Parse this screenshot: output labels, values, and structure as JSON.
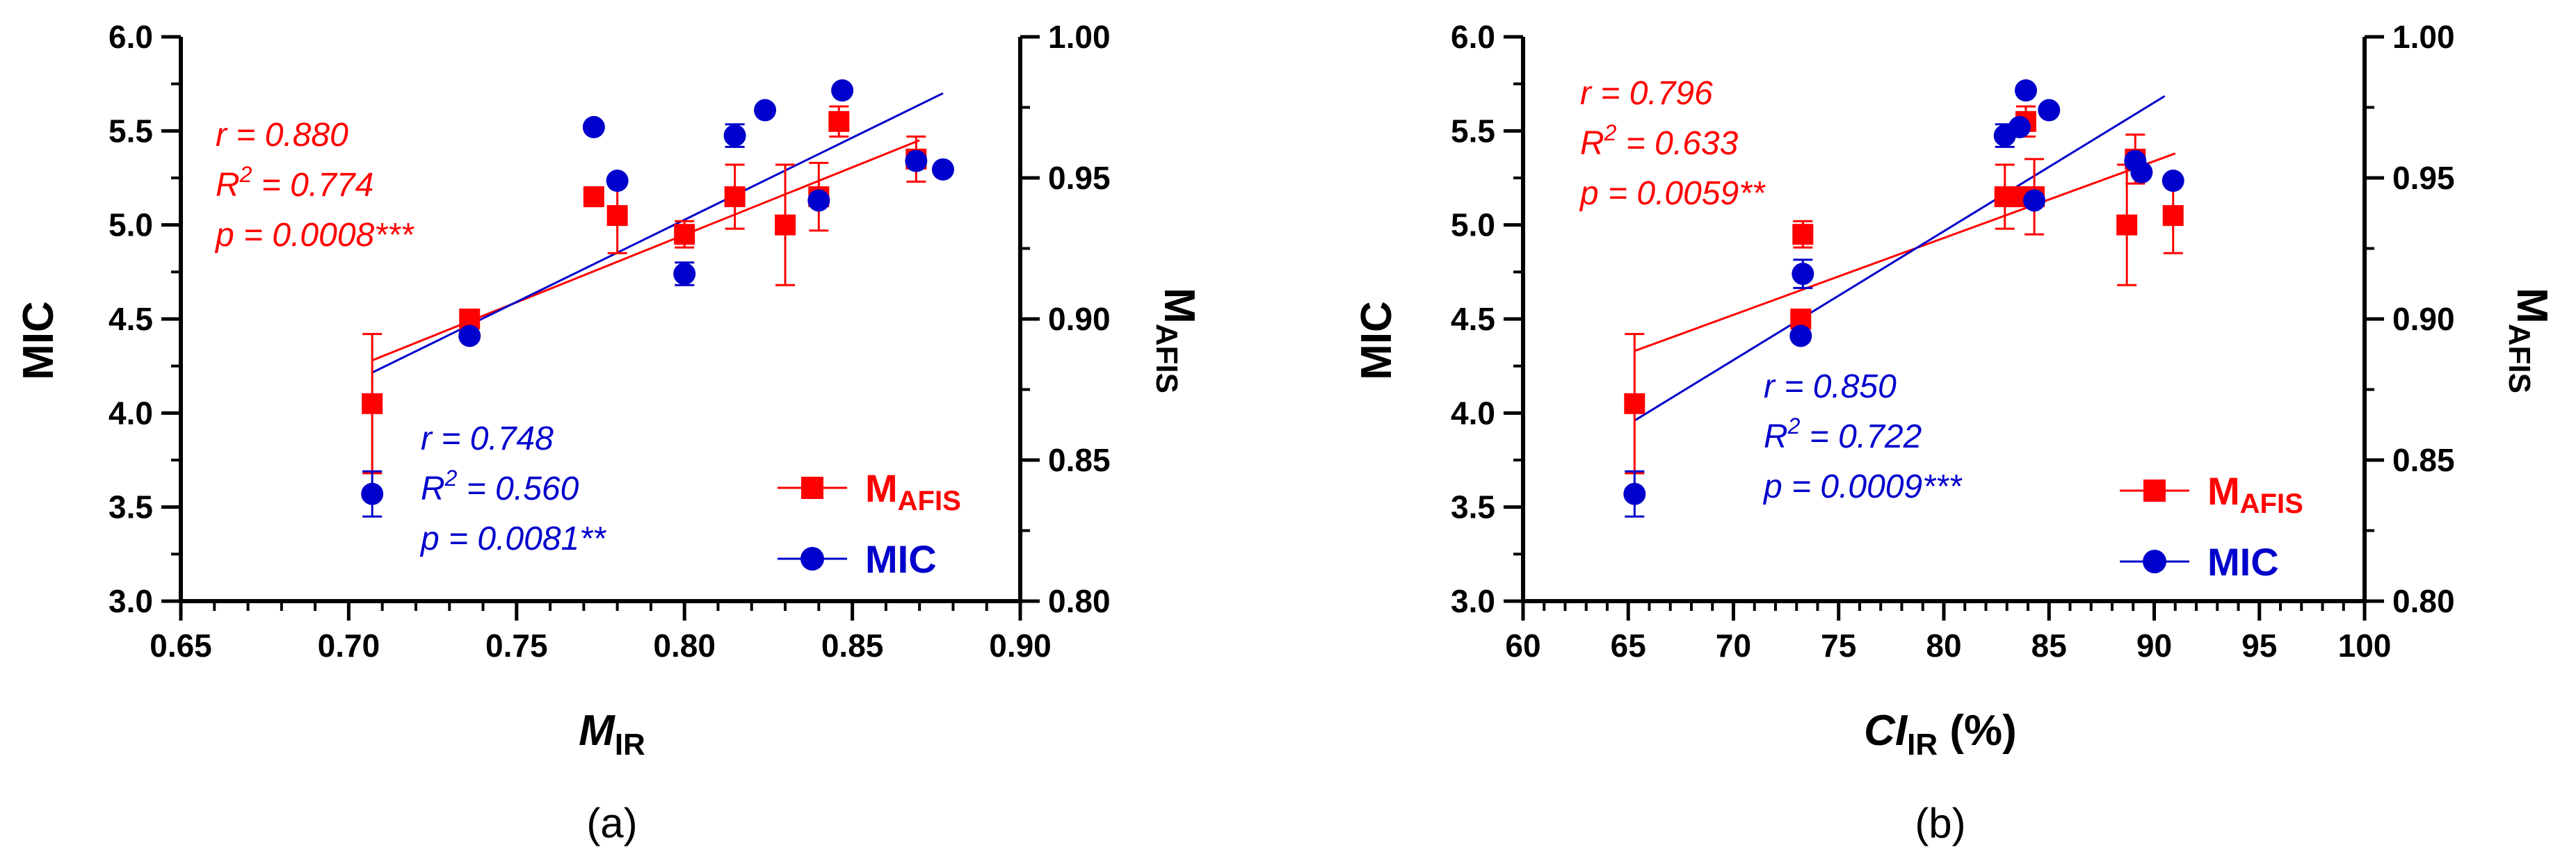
{
  "chart_data": [
    {
      "type": "scatter",
      "panel_label": "(a)",
      "xlabel": {
        "main": "M",
        "sub": "IR",
        "suffix": ""
      },
      "ylabel_left": "MIC",
      "ylabel_right": {
        "main": "M",
        "sub": "AFIS"
      },
      "xlim": [
        0.65,
        0.9
      ],
      "x_ticks": [
        "0.65",
        "0.70",
        "0.75",
        "0.80",
        "0.85",
        "0.90"
      ],
      "x_major_step": 0.05,
      "x_minor_step": 0.01,
      "ylim_left": [
        3.0,
        6.0
      ],
      "y_left_ticks": [
        "3.0",
        "3.5",
        "4.0",
        "4.5",
        "5.0",
        "5.5",
        "6.0"
      ],
      "ylim_right": [
        0.8,
        1.0
      ],
      "y_right_ticks": [
        "0.80",
        "0.85",
        "0.90",
        "0.95",
        "1.00"
      ],
      "legend": [
        {
          "main": "M",
          "sub": "AFIS",
          "color": "#ff0000",
          "marker": "square"
        },
        {
          "main": "MIC",
          "sub": "",
          "color": "#0000cc",
          "marker": "circle"
        }
      ],
      "series": [
        {
          "name": "MAFIS",
          "color": "#ff0000",
          "marker": "square",
          "axis": "left",
          "points": [
            {
              "x": 0.707,
              "y": 4.05,
              "err": 0.37
            },
            {
              "x": 0.736,
              "y": 4.5,
              "err": 0.05
            },
            {
              "x": 0.773,
              "y": 5.15,
              "err": 0.05
            },
            {
              "x": 0.78,
              "y": 5.05,
              "err": 0.2
            },
            {
              "x": 0.8,
              "y": 4.95,
              "err": 0.07
            },
            {
              "x": 0.815,
              "y": 5.15,
              "err": 0.17
            },
            {
              "x": 0.83,
              "y": 5.0,
              "err": 0.32
            },
            {
              "x": 0.84,
              "y": 5.15,
              "err": 0.18
            },
            {
              "x": 0.846,
              "y": 5.55,
              "err": 0.08
            },
            {
              "x": 0.869,
              "y": 5.35,
              "err": 0.12
            }
          ],
          "fit": {
            "x": [
              0.707,
              0.87
            ],
            "y": [
              4.28,
              5.45
            ]
          },
          "stats": {
            "r": "r = 0.880",
            "r2_pre": "R",
            "r2_sup": "2",
            "r2_post": " = 0.774",
            "p": "p = 0.0008***"
          }
        },
        {
          "name": "MIC",
          "color": "#0000cc",
          "marker": "circle",
          "axis": "right",
          "points": [
            {
              "x": 0.707,
              "y": 0.838,
              "err": 0.008
            },
            {
              "x": 0.736,
              "y": 0.894,
              "err": 0.0
            },
            {
              "x": 0.773,
              "y": 0.968,
              "err": 0.0
            },
            {
              "x": 0.78,
              "y": 0.949,
              "err": 0.0
            },
            {
              "x": 0.8,
              "y": 0.916,
              "err": 0.004
            },
            {
              "x": 0.815,
              "y": 0.965,
              "err": 0.004
            },
            {
              "x": 0.824,
              "y": 0.974,
              "err": 0.0
            },
            {
              "x": 0.84,
              "y": 0.942,
              "err": 0.0
            },
            {
              "x": 0.847,
              "y": 0.981,
              "err": 0.0
            },
            {
              "x": 0.869,
              "y": 0.956,
              "err": 0.0
            },
            {
              "x": 0.877,
              "y": 0.953,
              "err": 0.0
            }
          ],
          "fit": {
            "x": [
              0.707,
              0.877
            ],
            "y": [
              0.881,
              0.98
            ]
          },
          "stats": {
            "r": "r = 0.748",
            "r2_pre": "R",
            "r2_sup": "2",
            "r2_post": " = 0.560",
            "p": "p = 0.0081**"
          }
        }
      ]
    },
    {
      "type": "scatter",
      "panel_label": "(b)",
      "xlabel": {
        "main": "CI",
        "sub": "IR",
        "suffix": " (%)"
      },
      "ylabel_left": "MIC",
      "ylabel_right": {
        "main": "M",
        "sub": "AFIS"
      },
      "xlim": [
        60,
        100
      ],
      "x_ticks": [
        "60",
        "65",
        "70",
        "75",
        "80",
        "85",
        "90",
        "95",
        "100"
      ],
      "x_major_step": 5,
      "x_minor_step": 1,
      "ylim_left": [
        3.0,
        6.0
      ],
      "y_left_ticks": [
        "3.0",
        "3.5",
        "4.0",
        "4.5",
        "5.0",
        "5.5",
        "6.0"
      ],
      "ylim_right": [
        0.8,
        1.0
      ],
      "y_right_ticks": [
        "0.80",
        "0.85",
        "0.90",
        "0.95",
        "1.00"
      ],
      "legend": [
        {
          "main": "M",
          "sub": "AFIS",
          "color": "#ff0000",
          "marker": "square"
        },
        {
          "main": "MIC",
          "sub": "",
          "color": "#0000cc",
          "marker": "circle"
        }
      ],
      "series": [
        {
          "name": "MAFIS",
          "color": "#ff0000",
          "marker": "square",
          "axis": "left",
          "points": [
            {
              "x": 65.3,
              "y": 4.05,
              "err": 0.37
            },
            {
              "x": 73.2,
              "y": 4.5,
              "err": 0.05
            },
            {
              "x": 73.3,
              "y": 4.95,
              "err": 0.07
            },
            {
              "x": 82.9,
              "y": 5.15,
              "err": 0.17
            },
            {
              "x": 83.6,
              "y": 5.15,
              "err": 0.05
            },
            {
              "x": 83.9,
              "y": 5.55,
              "err": 0.08
            },
            {
              "x": 84.3,
              "y": 5.15,
              "err": 0.2
            },
            {
              "x": 88.7,
              "y": 5.0,
              "err": 0.32
            },
            {
              "x": 89.1,
              "y": 5.35,
              "err": 0.13
            },
            {
              "x": 90.9,
              "y": 5.05,
              "err": 0.2
            }
          ],
          "fit": {
            "x": [
              65.3,
              91.0
            ],
            "y": [
              4.33,
              5.38
            ]
          },
          "stats": {
            "r": "r = 0.796",
            "r2_pre": "R",
            "r2_sup": "2",
            "r2_post": " = 0.633",
            "p": "p = 0.0059**"
          }
        },
        {
          "name": "MIC",
          "color": "#0000cc",
          "marker": "circle",
          "axis": "right",
          "points": [
            {
              "x": 65.3,
              "y": 0.838,
              "err": 0.008
            },
            {
              "x": 73.2,
              "y": 0.894,
              "err": 0.0
            },
            {
              "x": 73.3,
              "y": 0.916,
              "err": 0.005
            },
            {
              "x": 82.9,
              "y": 0.965,
              "err": 0.004
            },
            {
              "x": 83.6,
              "y": 0.968,
              "err": 0.0
            },
            {
              "x": 83.9,
              "y": 0.981,
              "err": 0.0
            },
            {
              "x": 84.3,
              "y": 0.942,
              "err": 0.0
            },
            {
              "x": 85.0,
              "y": 0.974,
              "err": 0.0
            },
            {
              "x": 89.1,
              "y": 0.956,
              "err": 0.0
            },
            {
              "x": 89.4,
              "y": 0.952,
              "err": 0.0
            },
            {
              "x": 90.9,
              "y": 0.949,
              "err": 0.0
            }
          ],
          "fit": {
            "x": [
              65.3,
              90.5
            ],
            "y": [
              0.864,
              0.979
            ]
          },
          "stats": {
            "r": "r = 0.850",
            "r2_pre": "R",
            "r2_sup": "2",
            "r2_post": " = 0.722",
            "p": "p = 0.0009***"
          }
        }
      ]
    }
  ]
}
